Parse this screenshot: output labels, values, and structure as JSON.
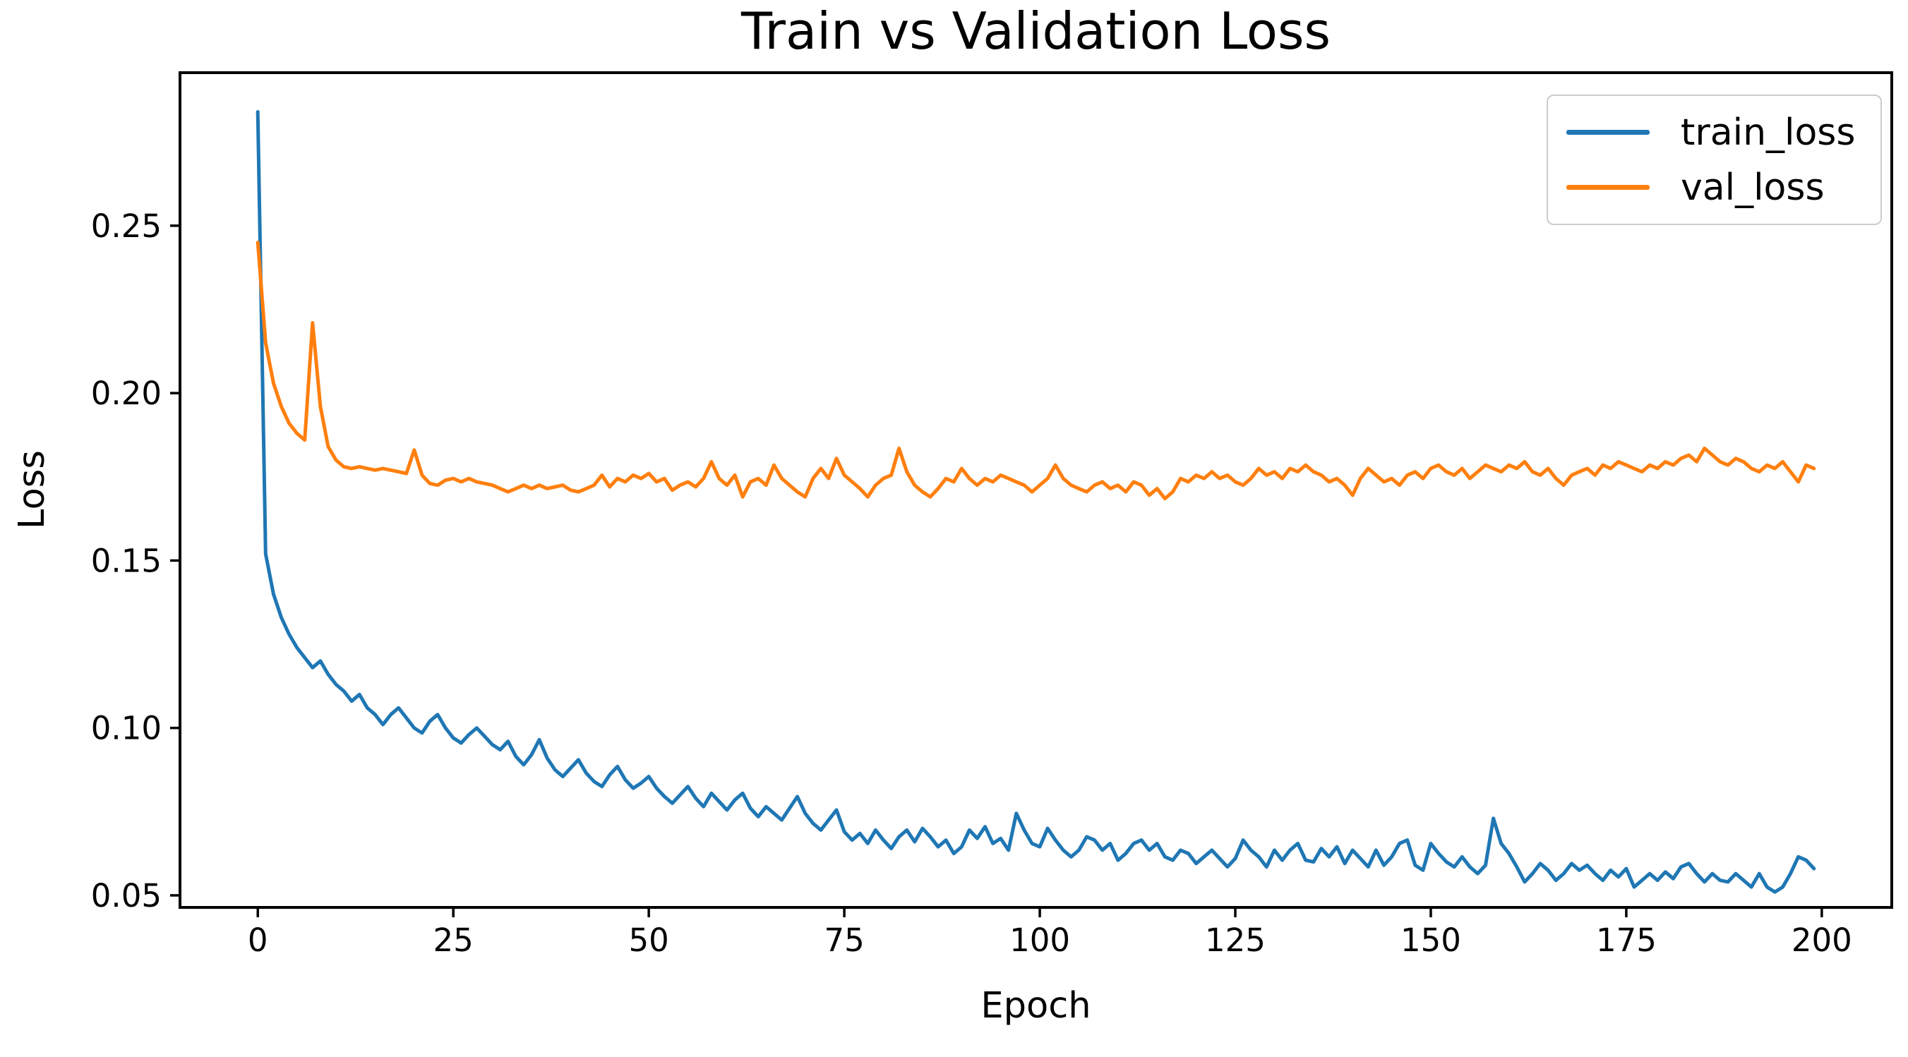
{
  "figure": {
    "background": "#ffffff"
  },
  "legend": {
    "items": [
      {
        "label": "train_loss",
        "color": "#1f77b4"
      },
      {
        "label": "val_loss",
        "color": "#ff7f0e"
      }
    ]
  },
  "axes": {
    "x_tick_labels": [
      "0",
      "25",
      "50",
      "75",
      "100",
      "125",
      "150",
      "175",
      "200"
    ],
    "y_tick_labels": [
      "0.05",
      "0.10",
      "0.15",
      "0.20",
      "0.25"
    ]
  },
  "chart_data": {
    "type": "line",
    "title": "Train vs Validation Loss",
    "xlabel": "Epoch",
    "ylabel": "Loss",
    "grid": false,
    "legend_position": "upper right",
    "x_ticks": [
      0,
      25,
      50,
      75,
      100,
      125,
      150,
      175,
      200
    ],
    "y_ticks": [
      0.05,
      0.1,
      0.15,
      0.2,
      0.25
    ],
    "xlim": [
      -9.95,
      208.95
    ],
    "ylim": [
      0.0464,
      0.2957
    ],
    "epochs": {
      "start": 0,
      "end": 199,
      "step": 1
    },
    "series": [
      {
        "name": "train_loss",
        "color": "#1f77b4",
        "values": [
          0.284,
          0.152,
          0.14,
          0.133,
          0.128,
          0.124,
          0.121,
          0.118,
          0.12,
          0.116,
          0.113,
          0.111,
          0.108,
          0.11,
          0.106,
          0.104,
          0.101,
          0.104,
          0.106,
          0.103,
          0.1,
          0.0985,
          0.102,
          0.104,
          0.1,
          0.097,
          0.0955,
          0.098,
          0.1,
          0.0975,
          0.095,
          0.0935,
          0.096,
          0.0915,
          0.089,
          0.092,
          0.0965,
          0.091,
          0.0875,
          0.0855,
          0.088,
          0.0905,
          0.0865,
          0.084,
          0.0825,
          0.086,
          0.0885,
          0.0845,
          0.082,
          0.0835,
          0.0855,
          0.082,
          0.0795,
          0.0775,
          0.08,
          0.0825,
          0.079,
          0.0765,
          0.0805,
          0.078,
          0.0755,
          0.0785,
          0.0805,
          0.076,
          0.0735,
          0.0765,
          0.0745,
          0.0725,
          0.076,
          0.0795,
          0.0745,
          0.0715,
          0.0695,
          0.0725,
          0.0755,
          0.069,
          0.0665,
          0.0685,
          0.0655,
          0.0695,
          0.0665,
          0.064,
          0.0675,
          0.0695,
          0.066,
          0.07,
          0.0675,
          0.0645,
          0.0665,
          0.0625,
          0.0645,
          0.0695,
          0.067,
          0.0705,
          0.0655,
          0.067,
          0.0635,
          0.0745,
          0.0695,
          0.0655,
          0.0645,
          0.07,
          0.0665,
          0.0635,
          0.0615,
          0.0635,
          0.0675,
          0.0665,
          0.0635,
          0.0655,
          0.0605,
          0.0625,
          0.0655,
          0.0665,
          0.0635,
          0.0655,
          0.0615,
          0.0605,
          0.0635,
          0.0625,
          0.0595,
          0.0615,
          0.0635,
          0.061,
          0.0585,
          0.061,
          0.0665,
          0.0635,
          0.0615,
          0.0585,
          0.0635,
          0.0605,
          0.0635,
          0.0655,
          0.0605,
          0.06,
          0.064,
          0.0615,
          0.0645,
          0.0595,
          0.0635,
          0.061,
          0.0585,
          0.0635,
          0.059,
          0.0615,
          0.0655,
          0.0665,
          0.059,
          0.0575,
          0.0655,
          0.0625,
          0.06,
          0.0585,
          0.0615,
          0.0585,
          0.0565,
          0.059,
          0.073,
          0.0655,
          0.0625,
          0.0585,
          0.054,
          0.0565,
          0.0595,
          0.0575,
          0.0545,
          0.0565,
          0.0595,
          0.0575,
          0.059,
          0.0565,
          0.0545,
          0.0575,
          0.0555,
          0.058,
          0.0525,
          0.0545,
          0.0565,
          0.0545,
          0.057,
          0.055,
          0.0585,
          0.0595,
          0.0565,
          0.054,
          0.0565,
          0.0545,
          0.054,
          0.0565,
          0.0545,
          0.0525,
          0.0565,
          0.0525,
          0.051,
          0.0525,
          0.0565,
          0.0615,
          0.0605,
          0.058
        ]
      },
      {
        "name": "val_loss",
        "color": "#ff7f0e",
        "values": [
          0.245,
          0.215,
          0.203,
          0.196,
          0.191,
          0.188,
          0.186,
          0.221,
          0.196,
          0.184,
          0.18,
          0.178,
          0.1775,
          0.178,
          0.1775,
          0.177,
          0.1775,
          0.177,
          0.1765,
          0.176,
          0.183,
          0.1755,
          0.173,
          0.1725,
          0.174,
          0.1745,
          0.1735,
          0.1745,
          0.1735,
          0.173,
          0.1725,
          0.1715,
          0.1705,
          0.1715,
          0.1725,
          0.1715,
          0.1725,
          0.1715,
          0.172,
          0.1725,
          0.171,
          0.1705,
          0.1715,
          0.1725,
          0.1755,
          0.172,
          0.1745,
          0.1735,
          0.1755,
          0.1745,
          0.176,
          0.1735,
          0.1745,
          0.171,
          0.1725,
          0.1735,
          0.172,
          0.1745,
          0.1795,
          0.1745,
          0.1725,
          0.1755,
          0.169,
          0.1735,
          0.1745,
          0.1725,
          0.1785,
          0.1745,
          0.1725,
          0.1705,
          0.169,
          0.1745,
          0.1775,
          0.1745,
          0.1805,
          0.1755,
          0.1735,
          0.1715,
          0.169,
          0.1725,
          0.1745,
          0.1755,
          0.1835,
          0.1765,
          0.1725,
          0.1705,
          0.169,
          0.1715,
          0.1745,
          0.1735,
          0.1775,
          0.1745,
          0.1725,
          0.1745,
          0.1735,
          0.1755,
          0.1745,
          0.1735,
          0.1725,
          0.1705,
          0.1725,
          0.1745,
          0.1785,
          0.1745,
          0.1725,
          0.1715,
          0.1705,
          0.1725,
          0.1735,
          0.1715,
          0.1725,
          0.1705,
          0.1735,
          0.1725,
          0.1695,
          0.1715,
          0.1685,
          0.1705,
          0.1745,
          0.1735,
          0.1755,
          0.1745,
          0.1765,
          0.1745,
          0.1755,
          0.1735,
          0.1725,
          0.1745,
          0.1775,
          0.1755,
          0.1765,
          0.1745,
          0.1775,
          0.1765,
          0.1785,
          0.1765,
          0.1755,
          0.1735,
          0.1745,
          0.1725,
          0.1695,
          0.1745,
          0.1775,
          0.1755,
          0.1735,
          0.1745,
          0.1725,
          0.1755,
          0.1765,
          0.1745,
          0.1775,
          0.1785,
          0.1765,
          0.1755,
          0.1775,
          0.1745,
          0.1765,
          0.1785,
          0.1775,
          0.1765,
          0.1785,
          0.1775,
          0.1795,
          0.1765,
          0.1755,
          0.1775,
          0.1745,
          0.1725,
          0.1755,
          0.1765,
          0.1775,
          0.1755,
          0.1785,
          0.1775,
          0.1795,
          0.1785,
          0.1775,
          0.1765,
          0.1785,
          0.1775,
          0.1795,
          0.1785,
          0.1805,
          0.1815,
          0.1795,
          0.1835,
          0.1815,
          0.1795,
          0.1785,
          0.1805,
          0.1795,
          0.1775,
          0.1765,
          0.1785,
          0.1775,
          0.1795,
          0.1765,
          0.1735,
          0.1785,
          0.1775
        ]
      }
    ]
  }
}
